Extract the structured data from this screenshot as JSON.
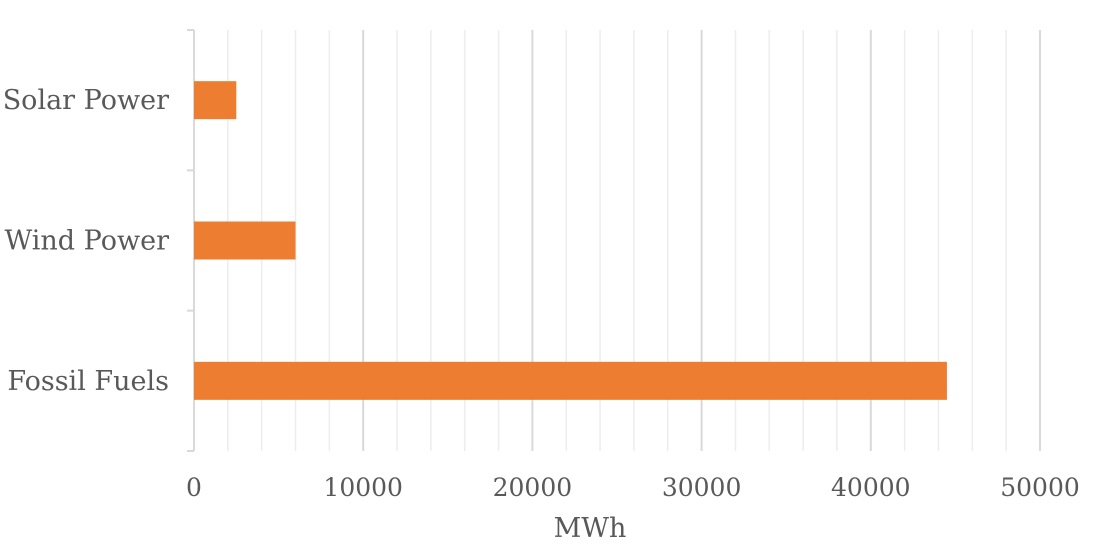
{
  "chart_data": {
    "type": "bar",
    "orientation": "horizontal",
    "categories": [
      "Solar Power",
      "Wind Power",
      "Fossil Fuels"
    ],
    "values": [
      2500,
      6000,
      44500
    ],
    "xlabel": "MWh",
    "ylabel": "",
    "xlim": [
      0,
      50000
    ],
    "xticks": [
      "0",
      "10000",
      "20000",
      "30000",
      "40000",
      "50000"
    ],
    "grid": true,
    "legend": "none",
    "colors": {
      "bar": "#ED7D31",
      "major_grid": "#D9D9D9",
      "minor_grid": "#EDEDED",
      "axis": "#D9D9D9",
      "text": "#595959"
    }
  }
}
